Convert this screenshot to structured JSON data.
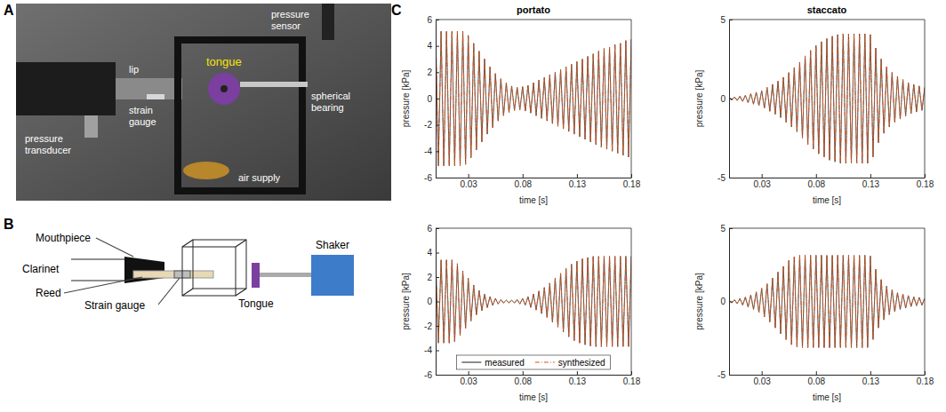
{
  "figure": {
    "panels": [
      {
        "letter": "A",
        "labels": [
          "pressure sensor",
          "tongue",
          "lip",
          "strain gauge",
          "spherical bearing",
          "air supply",
          "pressure transducer"
        ]
      },
      {
        "letter": "B",
        "labels": [
          "Mouthpiece",
          "Clarinet",
          "Reed",
          "Strain gauge",
          "Tongue",
          "Shaker"
        ]
      },
      {
        "letter": "C"
      }
    ]
  },
  "chart_data": [
    {
      "type": "line",
      "title": "portato",
      "xlabel": "time [s]",
      "ylabel": "pressure [kPa]",
      "x": [
        0,
        0.0025,
        0.005,
        0.0075,
        0.01,
        0.0125,
        0.015,
        0.0175,
        0.02,
        0.0225,
        0.025,
        0.0275,
        0.03,
        0.0325,
        0.035,
        0.0375,
        0.04,
        0.0425,
        0.045,
        0.0475,
        0.05,
        0.0525,
        0.055,
        0.0575,
        0.06,
        0.0625,
        0.065,
        0.0675,
        0.07,
        0.0725,
        0.075,
        0.0775,
        0.08,
        0.0825,
        0.085,
        0.0875,
        0.09,
        0.0925,
        0.095,
        0.0975,
        0.1,
        0.1025,
        0.105,
        0.1075,
        0.11,
        0.1125,
        0.115,
        0.1175,
        0.12,
        0.1225,
        0.125,
        0.1275,
        0.13,
        0.1325,
        0.135,
        0.1375,
        0.14,
        0.1425,
        0.145,
        0.1475,
        0.15,
        0.1525,
        0.155,
        0.1575,
        0.16,
        0.1625,
        0.165,
        0.1675,
        0.17,
        0.1725,
        0.175,
        0.1775,
        0.18
      ],
      "xlim": [
        0,
        0.18
      ],
      "xticks": [
        0.03,
        0.08,
        0.13,
        0.18
      ],
      "ylim": [
        -6,
        6
      ],
      "yticks": [
        -6,
        -4,
        -2,
        0,
        2,
        4,
        6
      ],
      "series": [
        {
          "color": "#404040",
          "line_style": "solid",
          "values": [
            5.1,
            -5.1,
            5.1,
            -5.1,
            5.1,
            -5.1,
            5.1,
            -5.1,
            5.1,
            -5.1,
            5.1,
            -5.0,
            4.8,
            -4.5,
            4.2,
            -3.9,
            3.6,
            -3.3,
            3.0,
            -2.7,
            2.4,
            -2.2,
            1.9,
            -1.7,
            1.5,
            -1.3,
            1.2,
            -1.05,
            0.95,
            -0.9,
            0.85,
            -0.85,
            0.9,
            -0.95,
            1.0,
            -1.1,
            1.2,
            -1.3,
            1.4,
            -1.5,
            1.6,
            -1.7,
            1.8,
            -1.9,
            2.0,
            -2.1,
            2.2,
            -2.3,
            2.4,
            -2.5,
            2.6,
            -2.7,
            2.8,
            -2.9,
            3.0,
            -3.1,
            3.2,
            -3.3,
            3.4,
            -3.5,
            3.6,
            -3.7,
            3.8,
            -3.85,
            3.9,
            -4.0,
            4.1,
            -4.15,
            4.2,
            -4.3,
            4.4,
            -4.45,
            4.5
          ]
        },
        {
          "color": "#d95319",
          "line_style": "dashdot",
          "values": [
            5.1,
            -5.1,
            5.1,
            -5.1,
            5.1,
            -5.1,
            5.1,
            -5.1,
            5.1,
            -5.1,
            5.1,
            -5.0,
            4.8,
            -4.5,
            4.2,
            -3.9,
            3.6,
            -3.3,
            3.0,
            -2.7,
            2.4,
            -2.2,
            1.9,
            -1.7,
            1.5,
            -1.3,
            1.2,
            -1.05,
            0.95,
            -0.9,
            0.85,
            -0.85,
            0.9,
            -0.95,
            1.0,
            -1.1,
            1.2,
            -1.3,
            1.4,
            -1.5,
            1.6,
            -1.7,
            1.8,
            -1.9,
            2.0,
            -2.1,
            2.2,
            -2.3,
            2.4,
            -2.5,
            2.6,
            -2.7,
            2.8,
            -2.9,
            3.0,
            -3.1,
            3.2,
            -3.3,
            3.4,
            -3.5,
            3.6,
            -3.7,
            3.8,
            -3.85,
            3.9,
            -4.0,
            4.1,
            -4.15,
            4.2,
            -4.3,
            4.4,
            -4.45,
            4.5
          ]
        }
      ]
    },
    {
      "type": "line",
      "title": "staccato",
      "xlabel": "time [s]",
      "ylabel": "pressure [kPa]",
      "x": [
        0,
        0.0025,
        0.005,
        0.0075,
        0.01,
        0.0125,
        0.015,
        0.0175,
        0.02,
        0.0225,
        0.025,
        0.0275,
        0.03,
        0.0325,
        0.035,
        0.0375,
        0.04,
        0.0425,
        0.045,
        0.0475,
        0.05,
        0.0525,
        0.055,
        0.0575,
        0.06,
        0.0625,
        0.065,
        0.0675,
        0.07,
        0.0725,
        0.075,
        0.0775,
        0.08,
        0.0825,
        0.085,
        0.0875,
        0.09,
        0.0925,
        0.095,
        0.0975,
        0.1,
        0.1025,
        0.105,
        0.1075,
        0.11,
        0.1125,
        0.115,
        0.1175,
        0.12,
        0.1225,
        0.125,
        0.1275,
        0.13,
        0.1325,
        0.135,
        0.1375,
        0.14,
        0.1425,
        0.145,
        0.1475,
        0.15,
        0.1525,
        0.155,
        0.1575,
        0.16,
        0.1625,
        0.165,
        0.1675,
        0.17,
        0.1725,
        0.175,
        0.1775,
        0.18
      ],
      "xlim": [
        0,
        0.18
      ],
      "xticks": [
        0.03,
        0.08,
        0.13,
        0.18
      ],
      "ylim": [
        -5,
        5
      ],
      "yticks": [
        -5,
        0,
        5
      ],
      "series": [
        {
          "color": "#404040",
          "line_style": "solid",
          "values": [
            0.1,
            -0.1,
            0.1,
            -0.12,
            0.15,
            -0.18,
            0.2,
            -0.25,
            0.3,
            -0.35,
            0.4,
            -0.45,
            0.5,
            -0.6,
            0.7,
            -0.8,
            0.9,
            -1.0,
            1.1,
            -1.2,
            1.35,
            -1.5,
            1.65,
            -1.8,
            1.95,
            -2.1,
            2.3,
            -2.5,
            2.7,
            -2.9,
            3.05,
            -3.2,
            3.35,
            -3.5,
            3.6,
            -3.7,
            3.8,
            -3.9,
            3.95,
            -4.0,
            4.05,
            -4.1,
            4.1,
            -4.1,
            4.1,
            -4.1,
            4.1,
            -4.1,
            4.1,
            -4.1,
            4.1,
            -4.1,
            4.05,
            -3.7,
            3.2,
            -2.8,
            2.5,
            -2.2,
            2.0,
            -1.8,
            1.65,
            -1.5,
            1.4,
            -1.3,
            1.2,
            -1.1,
            1.0,
            -0.95,
            0.9,
            -0.85,
            0.8,
            -0.75,
            0.7
          ]
        },
        {
          "color": "#d95319",
          "line_style": "dashdot",
          "values": [
            0.1,
            -0.1,
            0.1,
            -0.12,
            0.15,
            -0.18,
            0.2,
            -0.25,
            0.3,
            -0.35,
            0.4,
            -0.45,
            0.5,
            -0.6,
            0.7,
            -0.8,
            0.9,
            -1.0,
            1.1,
            -1.2,
            1.35,
            -1.5,
            1.65,
            -1.8,
            1.95,
            -2.1,
            2.3,
            -2.5,
            2.7,
            -2.9,
            3.05,
            -3.2,
            3.35,
            -3.5,
            3.6,
            -3.7,
            3.8,
            -3.9,
            3.95,
            -4.0,
            4.05,
            -4.1,
            4.1,
            -4.1,
            4.1,
            -4.1,
            4.1,
            -4.1,
            4.1,
            -4.1,
            4.1,
            -4.1,
            4.05,
            -3.7,
            3.2,
            -2.8,
            2.5,
            -2.2,
            2.0,
            -1.8,
            1.65,
            -1.5,
            1.4,
            -1.3,
            1.2,
            -1.1,
            1.0,
            -0.95,
            0.9,
            -0.85,
            0.8,
            -0.75,
            0.7
          ]
        }
      ]
    },
    {
      "type": "line",
      "xlabel": "time [s]",
      "ylabel": "pressure [kPa]",
      "legend": "bottom",
      "x": [
        0,
        0.0025,
        0.005,
        0.0075,
        0.01,
        0.0125,
        0.015,
        0.0175,
        0.02,
        0.0225,
        0.025,
        0.0275,
        0.03,
        0.0325,
        0.035,
        0.0375,
        0.04,
        0.0425,
        0.045,
        0.0475,
        0.05,
        0.0525,
        0.055,
        0.0575,
        0.06,
        0.0625,
        0.065,
        0.0675,
        0.07,
        0.0725,
        0.075,
        0.0775,
        0.08,
        0.0825,
        0.085,
        0.0875,
        0.09,
        0.0925,
        0.095,
        0.0975,
        0.1,
        0.1025,
        0.105,
        0.1075,
        0.11,
        0.1125,
        0.115,
        0.1175,
        0.12,
        0.1225,
        0.125,
        0.1275,
        0.13,
        0.1325,
        0.135,
        0.1375,
        0.14,
        0.1425,
        0.145,
        0.1475,
        0.15,
        0.1525,
        0.155,
        0.1575,
        0.16,
        0.1625,
        0.165,
        0.1675,
        0.17,
        0.1725,
        0.175,
        0.1775,
        0.18
      ],
      "xlim": [
        0,
        0.18
      ],
      "xticks": [
        0.03,
        0.08,
        0.13,
        0.18
      ],
      "ylim": [
        -6,
        6
      ],
      "yticks": [
        -6,
        -4,
        -2,
        0,
        2,
        4,
        6
      ],
      "series": [
        {
          "name": "measured",
          "color": "#404040",
          "line_style": "solid",
          "values": [
            3.4,
            -3.4,
            3.4,
            -3.4,
            3.4,
            -3.4,
            3.4,
            -3.3,
            3.1,
            -2.8,
            2.5,
            -2.2,
            1.9,
            -1.6,
            1.35,
            -1.1,
            0.9,
            -0.75,
            0.6,
            -0.5,
            0.4,
            -0.32,
            0.25,
            -0.2,
            0.15,
            -0.12,
            0.1,
            -0.1,
            0.1,
            -0.12,
            0.15,
            -0.2,
            0.25,
            -0.3,
            0.4,
            -0.5,
            0.6,
            -0.7,
            0.85,
            -1.0,
            1.15,
            -1.3,
            1.5,
            -1.7,
            1.9,
            -2.1,
            2.3,
            -2.5,
            2.7,
            -2.9,
            3.05,
            -3.2,
            3.3,
            -3.4,
            3.5,
            -3.55,
            3.6,
            -3.65,
            3.7,
            -3.7,
            3.7,
            -3.7,
            3.7,
            -3.7,
            3.7,
            -3.7,
            3.7,
            -3.7,
            3.7,
            -3.7,
            3.7,
            -3.7,
            3.7
          ]
        },
        {
          "name": "synthesized",
          "color": "#d95319",
          "line_style": "dashdot",
          "values": [
            3.4,
            -3.4,
            3.4,
            -3.4,
            3.4,
            -3.4,
            3.4,
            -3.3,
            3.1,
            -2.8,
            2.5,
            -2.2,
            1.9,
            -1.6,
            1.35,
            -1.1,
            0.9,
            -0.75,
            0.6,
            -0.5,
            0.4,
            -0.32,
            0.25,
            -0.2,
            0.15,
            -0.12,
            0.1,
            -0.1,
            0.1,
            -0.12,
            0.15,
            -0.2,
            0.25,
            -0.3,
            0.4,
            -0.5,
            0.6,
            -0.7,
            0.85,
            -1.0,
            1.15,
            -1.3,
            1.5,
            -1.7,
            1.9,
            -2.1,
            2.3,
            -2.5,
            2.7,
            -2.9,
            3.05,
            -3.2,
            3.3,
            -3.4,
            3.5,
            -3.55,
            3.6,
            -3.65,
            3.7,
            -3.7,
            3.7,
            -3.7,
            3.7,
            -3.7,
            3.7,
            -3.7,
            3.7,
            -3.7,
            3.7,
            -3.7,
            3.7,
            -3.7,
            3.7
          ]
        }
      ]
    },
    {
      "type": "line",
      "xlabel": "time [s]",
      "ylabel": "pressure [kPa]",
      "x": [
        0,
        0.0025,
        0.005,
        0.0075,
        0.01,
        0.0125,
        0.015,
        0.0175,
        0.02,
        0.0225,
        0.025,
        0.0275,
        0.03,
        0.0325,
        0.035,
        0.0375,
        0.04,
        0.0425,
        0.045,
        0.0475,
        0.05,
        0.0525,
        0.055,
        0.0575,
        0.06,
        0.0625,
        0.065,
        0.0675,
        0.07,
        0.0725,
        0.075,
        0.0775,
        0.08,
        0.0825,
        0.085,
        0.0875,
        0.09,
        0.0925,
        0.095,
        0.0975,
        0.1,
        0.1025,
        0.105,
        0.1075,
        0.11,
        0.1125,
        0.115,
        0.1175,
        0.12,
        0.1225,
        0.125,
        0.1275,
        0.13,
        0.1325,
        0.135,
        0.1375,
        0.14,
        0.1425,
        0.145,
        0.1475,
        0.15,
        0.1525,
        0.155,
        0.1575,
        0.16,
        0.1625,
        0.165,
        0.1675,
        0.17,
        0.1725,
        0.175,
        0.1775,
        0.18
      ],
      "xlim": [
        0,
        0.18
      ],
      "xticks": [
        0.03,
        0.08,
        0.13,
        0.18
      ],
      "ylim": [
        -5,
        5
      ],
      "yticks": [
        -5,
        0,
        5
      ],
      "series": [
        {
          "color": "#404040",
          "line_style": "solid",
          "values": [
            0.1,
            -0.1,
            0.12,
            -0.15,
            0.2,
            -0.25,
            0.3,
            -0.38,
            0.45,
            -0.55,
            0.65,
            -0.75,
            0.9,
            -1.05,
            1.2,
            -1.4,
            1.6,
            -1.8,
            2.0,
            -2.2,
            2.4,
            -2.6,
            2.8,
            -2.95,
            3.05,
            -3.1,
            3.15,
            -3.15,
            3.15,
            -3.15,
            3.15,
            -3.15,
            3.15,
            -3.15,
            3.15,
            -3.15,
            3.15,
            -3.15,
            3.15,
            -3.15,
            3.15,
            -3.15,
            3.15,
            -3.15,
            3.15,
            -3.15,
            3.15,
            -3.15,
            3.15,
            -3.15,
            3.15,
            -3.15,
            3.1,
            -2.6,
            2.2,
            -1.8,
            1.5,
            -1.25,
            1.05,
            -0.9,
            0.8,
            -0.7,
            0.6,
            -0.55,
            0.5,
            -0.45,
            0.4,
            -0.35,
            0.32,
            -0.3,
            0.28,
            -0.25,
            0.22
          ]
        },
        {
          "color": "#d95319",
          "line_style": "dashdot",
          "values": [
            0.1,
            -0.1,
            0.12,
            -0.15,
            0.2,
            -0.25,
            0.3,
            -0.38,
            0.45,
            -0.55,
            0.65,
            -0.75,
            0.9,
            -1.05,
            1.2,
            -1.4,
            1.6,
            -1.8,
            2.0,
            -2.2,
            2.4,
            -2.6,
            2.8,
            -2.95,
            3.05,
            -3.1,
            3.15,
            -3.15,
            3.15,
            -3.15,
            3.15,
            -3.15,
            3.15,
            -3.15,
            3.15,
            -3.15,
            3.15,
            -3.15,
            3.15,
            -3.15,
            3.15,
            -3.15,
            3.15,
            -3.15,
            3.15,
            -3.15,
            3.15,
            -3.15,
            3.15,
            -3.15,
            3.15,
            -3.15,
            3.1,
            -2.6,
            2.2,
            -1.8,
            1.5,
            -1.25,
            1.05,
            -0.9,
            0.8,
            -0.7,
            0.6,
            -0.55,
            0.5,
            -0.45,
            0.4,
            -0.35,
            0.32,
            -0.3,
            0.28,
            -0.25,
            0.22
          ]
        }
      ]
    }
  ]
}
